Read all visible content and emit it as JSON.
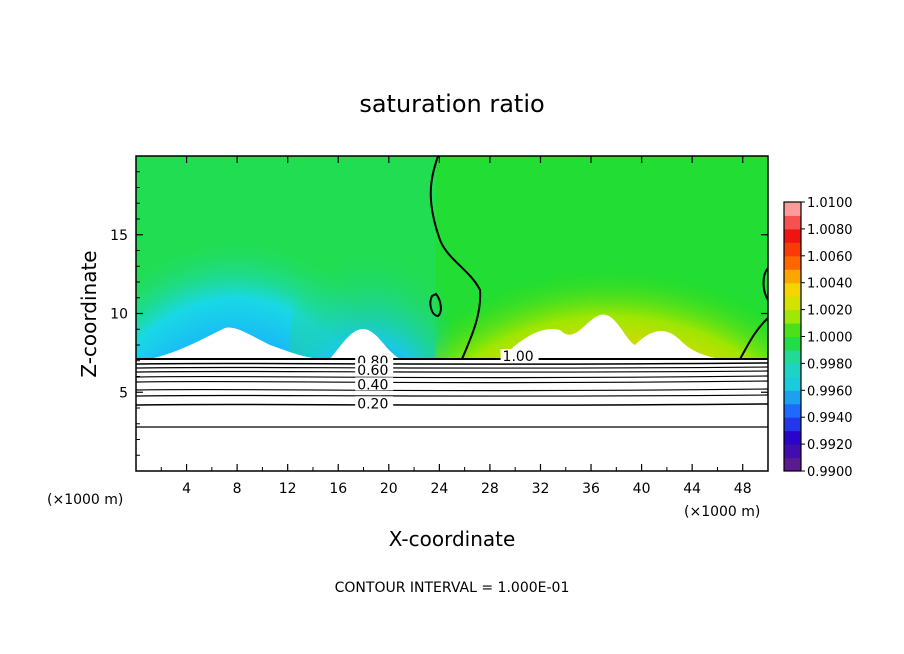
{
  "chart_data": {
    "type": "heatmap",
    "title": "saturation ratio",
    "xlabel": "X-coordinate",
    "ylabel": "Z-coordinate",
    "x_unit": "(×1000 m)",
    "x_ticks": [
      4,
      8,
      12,
      16,
      20,
      24,
      28,
      32,
      36,
      40,
      44,
      48
    ],
    "y_ticks": [
      5,
      10,
      15
    ],
    "xlim": [
      0,
      50
    ],
    "ylim": [
      0,
      20
    ],
    "footer": "CONTOUR INTERVAL = 1.000E-01",
    "colorbar": {
      "ticks": [
        "0.9900",
        "0.9920",
        "0.9940",
        "0.9960",
        "0.9980",
        "1.0000",
        "1.0020",
        "1.0040",
        "1.0060",
        "1.0080",
        "1.0100"
      ],
      "range": [
        0.99,
        1.01
      ],
      "colors": [
        "#5a1b8f",
        "#2a00c8",
        "#1f5fff",
        "#19c8e6",
        "#22d8b4",
        "#22dd22",
        "#c0ea00",
        "#ffd000",
        "#ff5a00",
        "#ee1010",
        "#ff9a9a"
      ]
    },
    "contour_lines": [
      {
        "label": "1.00",
        "label_x": 29,
        "label_z": 7.3
      },
      {
        "label": "0.80",
        "label_x": 17.5,
        "label_z": 7.0
      },
      {
        "label": "0.60",
        "label_x": 17.5,
        "label_z": 6.4
      },
      {
        "label": "0.40",
        "label_x": 17.5,
        "label_z": 5.5
      },
      {
        "label": "0.20",
        "label_x": 17.5,
        "label_z": 4.3
      }
    ]
  }
}
